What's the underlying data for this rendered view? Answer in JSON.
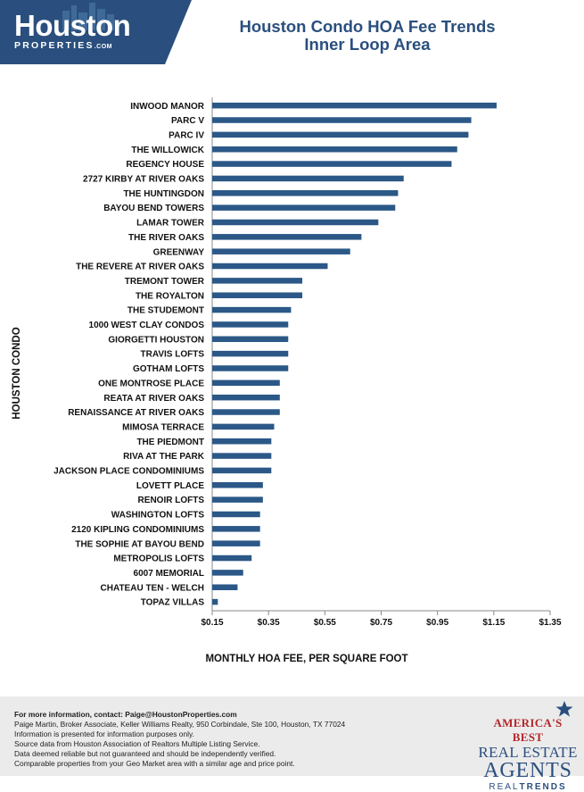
{
  "logo": {
    "main": "Houston",
    "sub": "PROPERTIES",
    "com": ".COM"
  },
  "colors": {
    "brand": "#2a4f7e",
    "bar": "#2b5887",
    "accent_red": "#b3262b",
    "footer_bg": "#ebebeb"
  },
  "chart_data": {
    "type": "bar",
    "orientation": "horizontal",
    "title": "Houston Condo HOA Fee Trends",
    "subtitle": "Inner Loop Area",
    "xlabel": "MONTHLY HOA FEE, PER SQUARE FOOT",
    "ylabel": "HOUSTON CONDO",
    "xlim": [
      0.15,
      1.35
    ],
    "xticks": [
      "$0.15",
      "$0.35",
      "$0.55",
      "$0.75",
      "$0.95",
      "$1.15",
      "$1.35"
    ],
    "xtick_values": [
      0.15,
      0.35,
      0.55,
      0.75,
      0.95,
      1.15,
      1.35
    ],
    "grid": false,
    "categories": [
      "INWOOD MANOR",
      "PARC V",
      "PARC IV",
      "THE WILLOWICK",
      "REGENCY HOUSE",
      "2727 KIRBY AT RIVER OAKS",
      "THE HUNTINGDON",
      "BAYOU BEND TOWERS",
      "LAMAR TOWER",
      "THE RIVER OAKS",
      "GREENWAY",
      "THE REVERE AT RIVER OAKS",
      "TREMONT TOWER",
      "THE ROYALTON",
      "THE STUDEMONT",
      "1000 WEST CLAY CONDOS",
      "GIORGETTI HOUSTON",
      "TRAVIS LOFTS",
      "GOTHAM LOFTS",
      "ONE MONTROSE PLACE",
      "REATA AT RIVER OAKS",
      "RENAISSANCE AT RIVER OAKS",
      "MIMOSA TERRACE",
      "THE PIEDMONT",
      "RIVA AT THE PARK",
      "JACKSON PLACE CONDOMINIUMS",
      "LOVETT PLACE",
      "RENOIR LOFTS",
      "WASHINGTON LOFTS",
      "2120 KIPLING CONDOMINIUMS",
      "THE SOPHIE AT BAYOU BEND",
      "METROPOLIS LOFTS",
      "6007 MEMORIAL",
      "CHATEAU TEN - WELCH",
      "TOPAZ VILLAS"
    ],
    "values": [
      1.16,
      1.07,
      1.06,
      1.02,
      1.0,
      0.83,
      0.81,
      0.8,
      0.74,
      0.68,
      0.64,
      0.56,
      0.47,
      0.47,
      0.43,
      0.42,
      0.42,
      0.42,
      0.42,
      0.39,
      0.39,
      0.39,
      0.37,
      0.36,
      0.36,
      0.36,
      0.33,
      0.33,
      0.32,
      0.32,
      0.32,
      0.29,
      0.26,
      0.24,
      0.17
    ]
  },
  "footer": {
    "contact": "For more information, contact: Paige@HoustonProperties.com",
    "lines": [
      "Paige Martin, Broker Associate, Keller Williams Realty, 950 Corbindale, Ste 100, Houston, TX 77024",
      "Information is presented for information purposes only.",
      "Source data from Houston Association of Realtors Multiple Listing Service.",
      "Data deemed reliable but not guaranteed and should be independently verified.",
      "Comparable properties from your Geo Market area with a similar age and price point."
    ]
  },
  "badge": {
    "line1": "AMERICA'S BEST",
    "line2": "REAL ESTATE",
    "line3": "AGENTS",
    "line4a": "REAL",
    "line4b": "TRENDS"
  }
}
